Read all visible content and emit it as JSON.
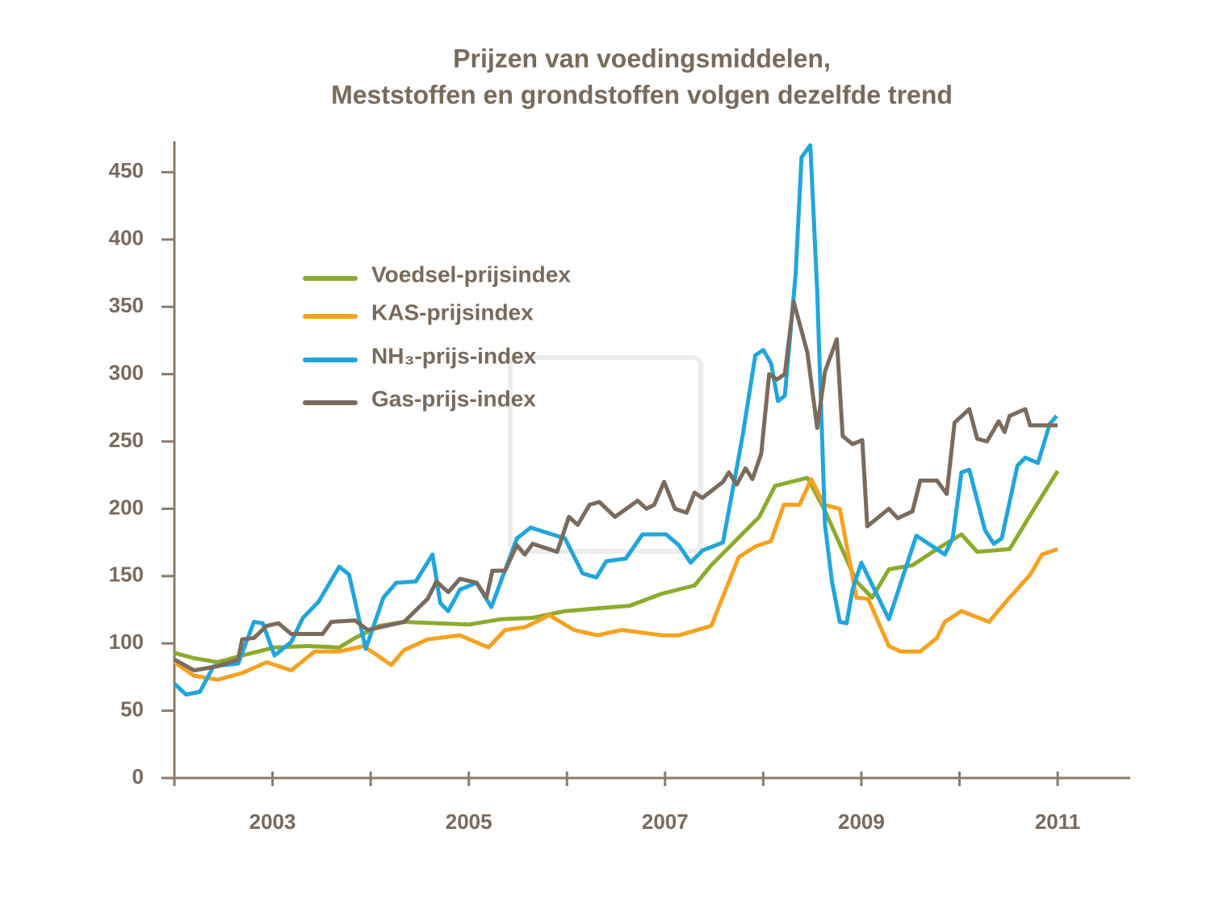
{
  "chart_data": {
    "type": "line",
    "title": [
      "Prijzen van voedingsmiddelen,",
      "Meststoffen en grondstoffen volgen dezelfde trend"
    ],
    "xlim": [
      2002,
      2011.74
    ],
    "xticks": [
      {
        "value": 2002,
        "label": null
      },
      2003,
      {
        "value": 2004,
        "label": null
      },
      2005,
      {
        "value": 2006,
        "label": null
      },
      2007,
      {
        "value": 2008,
        "label": null
      },
      2009,
      {
        "value": 2010,
        "label": null
      },
      2011
    ],
    "ylim": [
      0,
      473
    ],
    "yticks": [
      0,
      50,
      100,
      150,
      200,
      250,
      300,
      350,
      400,
      450
    ],
    "series": [
      {
        "name": "Voedsel-prijsindex",
        "color": "#8cab2c",
        "x": [
          2002.0,
          2002.2,
          2002.44,
          2002.69,
          2003.02,
          2003.35,
          2003.68,
          2003.84,
          2004.09,
          2004.34,
          2004.67,
          2005.0,
          2005.33,
          2005.65,
          2005.98,
          2006.31,
          2006.64,
          2006.97,
          2007.3,
          2007.47,
          2007.96,
          2008.12,
          2008.45,
          2008.62,
          2008.95,
          2009.11,
          2009.28,
          2009.52,
          2009.77,
          2010.02,
          2010.18,
          2010.51,
          2010.76,
          2011.0
        ],
        "values": [
          93,
          89,
          86,
          91,
          97,
          98,
          97,
          104,
          113,
          116,
          115,
          114,
          118,
          119,
          124,
          126,
          128,
          137,
          143,
          158,
          194,
          217,
          223,
          200,
          146,
          134,
          155,
          158,
          170,
          181,
          168,
          170,
          200,
          228
        ]
      },
      {
        "name": "KAS-prijsindex",
        "color": "#f6a21e",
        "x": [
          2002.0,
          2002.2,
          2002.44,
          2002.69,
          2002.94,
          2003.19,
          2003.43,
          2003.68,
          2003.93,
          2004.21,
          2004.34,
          2004.58,
          2004.91,
          2005.2,
          2005.37,
          2005.57,
          2005.82,
          2006.07,
          2006.31,
          2006.56,
          2006.97,
          2007.14,
          2007.47,
          2007.75,
          2007.92,
          2008.08,
          2008.21,
          2008.37,
          2008.49,
          2008.62,
          2008.78,
          2008.95,
          2009.07,
          2009.28,
          2009.4,
          2009.6,
          2009.77,
          2009.85,
          2010.02,
          2010.3,
          2010.51,
          2010.72,
          2010.84,
          2011.0
        ],
        "values": [
          86,
          76,
          73,
          78,
          86,
          80,
          94,
          94,
          98,
          84,
          95,
          103,
          106,
          97,
          110,
          112,
          121,
          110,
          106,
          110,
          106,
          106,
          113,
          164,
          172,
          176,
          203,
          203,
          222,
          203,
          200,
          134,
          133,
          98,
          94,
          94,
          104,
          116,
          124,
          116,
          134,
          151,
          166,
          170
        ]
      },
      {
        "name": "NH₃-prijs-index",
        "color": "#20a6dc",
        "x": [
          2002.0,
          2002.12,
          2002.26,
          2002.4,
          2002.65,
          2002.81,
          2002.9,
          2003.02,
          2003.19,
          2003.31,
          2003.47,
          2003.68,
          2003.78,
          2003.95,
          2004.13,
          2004.26,
          2004.46,
          2004.63,
          2004.71,
          2004.79,
          2004.91,
          2005.08,
          2005.23,
          2005.49,
          2005.63,
          2005.98,
          2006.16,
          2006.3,
          2006.4,
          2006.6,
          2006.77,
          2007.01,
          2007.14,
          2007.26,
          2007.38,
          2007.59,
          2007.79,
          2007.92,
          2008.0,
          2008.08,
          2008.15,
          2008.22,
          2008.33,
          2008.39,
          2008.48,
          2008.55,
          2008.63,
          2008.7,
          2008.78,
          2008.85,
          2008.91,
          2009.0,
          2009.28,
          2009.56,
          2009.85,
          2009.93,
          2010.02,
          2010.1,
          2010.26,
          2010.35,
          2010.43,
          2010.59,
          2010.67,
          2010.8,
          2010.92,
          2010.99
        ],
        "values": [
          70,
          62,
          64,
          83,
          85,
          116,
          115,
          91,
          101,
          119,
          131,
          157,
          151,
          96,
          134,
          145,
          146,
          166,
          130,
          124,
          140,
          145,
          127,
          178,
          186,
          178,
          152,
          149,
          161,
          163,
          181,
          181,
          173,
          160,
          169,
          175,
          254,
          314,
          318,
          308,
          280,
          284,
          374,
          461,
          470,
          362,
          188,
          146,
          116,
          115,
          140,
          160,
          118,
          180,
          166,
          178,
          227,
          229,
          184,
          174,
          178,
          232,
          238,
          234,
          263,
          269
        ]
      },
      {
        "name": "Gas-prijs-index",
        "color": "#7b6b5d",
        "x": [
          2002.0,
          2002.2,
          2002.44,
          2002.65,
          2002.69,
          2002.81,
          2002.94,
          2003.06,
          2003.19,
          2003.51,
          2003.6,
          2003.84,
          2003.97,
          2004.34,
          2004.58,
          2004.67,
          2004.79,
          2004.91,
          2005.08,
          2005.18,
          2005.24,
          2005.37,
          2005.49,
          2005.57,
          2005.65,
          2005.9,
          2006.02,
          2006.11,
          2006.23,
          2006.33,
          2006.49,
          2006.72,
          2006.81,
          2006.89,
          2006.99,
          2007.1,
          2007.22,
          2007.3,
          2007.38,
          2007.59,
          2007.65,
          2007.73,
          2007.82,
          2007.89,
          2007.98,
          2008.06,
          2008.14,
          2008.22,
          2008.31,
          2008.45,
          2008.55,
          2008.63,
          2008.75,
          2008.81,
          2008.91,
          2009.01,
          2009.06,
          2009.28,
          2009.37,
          2009.52,
          2009.6,
          2009.77,
          2009.87,
          2009.95,
          2010.1,
          2010.18,
          2010.28,
          2010.4,
          2010.46,
          2010.51,
          2010.67,
          2010.72,
          2011.0
        ],
        "values": [
          88,
          80,
          83,
          88,
          103,
          104,
          113,
          115,
          107,
          107,
          116,
          117,
          110,
          116,
          133,
          146,
          138,
          148,
          145,
          134,
          154,
          154,
          173,
          166,
          174,
          168,
          194,
          188,
          203,
          205,
          194,
          206,
          200,
          203,
          220,
          200,
          197,
          212,
          208,
          220,
          227,
          218,
          230,
          222,
          241,
          300,
          296,
          300,
          354,
          316,
          260,
          302,
          326,
          254,
          248,
          251,
          187,
          200,
          193,
          198,
          221,
          221,
          211,
          264,
          274,
          252,
          250,
          265,
          257,
          269,
          274,
          262,
          262
        ]
      }
    ]
  }
}
